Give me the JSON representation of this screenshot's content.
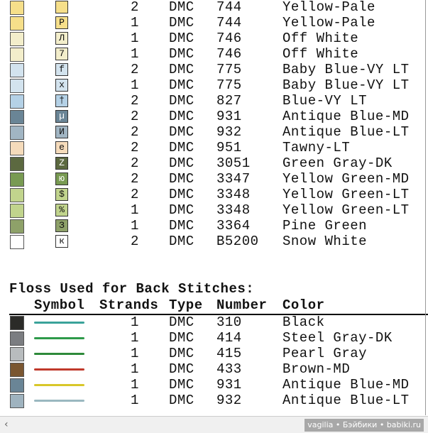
{
  "stitch_rows": [
    {
      "swatch": "#f6df8a",
      "strands": 2,
      "type": "DMC",
      "number": "744",
      "color": "Yellow-Pale"
    },
    {
      "swatch": "#f6df8a",
      "symbol": "P",
      "strands": 1,
      "type": "DMC",
      "number": "744",
      "color": "Yellow-Pale"
    },
    {
      "swatch": "#f3eecb",
      "symbol": "Л",
      "strands": 1,
      "type": "DMC",
      "number": "746",
      "color": "Off White"
    },
    {
      "swatch": "#f3eecb",
      "symbol": "7",
      "strands": 1,
      "type": "DMC",
      "number": "746",
      "color": "Off White"
    },
    {
      "swatch": "#d3e3ee",
      "symbol": "f",
      "strands": 2,
      "type": "DMC",
      "number": "775",
      "color": "Baby Blue-VY LT"
    },
    {
      "swatch": "#d3e3ee",
      "symbol": "x",
      "strands": 1,
      "type": "DMC",
      "number": "775",
      "color": "Baby Blue-VY LT"
    },
    {
      "swatch": "#b4d1e6",
      "symbol": "†",
      "strands": 2,
      "type": "DMC",
      "number": "827",
      "color": "Blue-VY LT"
    },
    {
      "swatch": "#6a8596",
      "symbol": "µ",
      "strands": 2,
      "type": "DMC",
      "number": "931",
      "color": "Antique Blue-MD"
    },
    {
      "swatch": "#a1b5c3",
      "symbol": "И",
      "strands": 2,
      "type": "DMC",
      "number": "932",
      "color": "Antique Blue-LT"
    },
    {
      "swatch": "#f5dbbb",
      "symbol": "e",
      "strands": 2,
      "type": "DMC",
      "number": "951",
      "color": "Tawny-LT"
    },
    {
      "swatch": "#5c6940",
      "symbol": "Z",
      "strands": 2,
      "type": "DMC",
      "number": "3051",
      "color": "Green Gray-DK"
    },
    {
      "swatch": "#789a52",
      "symbol": "ю",
      "strands": 2,
      "type": "DMC",
      "number": "3347",
      "color": "Yellow Green-MD"
    },
    {
      "swatch": "#c1d48d",
      "symbol": "$",
      "strands": 2,
      "type": "DMC",
      "number": "3348",
      "color": "Yellow Green-LT"
    },
    {
      "swatch": "#c1d48d",
      "symbol": "%",
      "strands": 1,
      "type": "DMC",
      "number": "3348",
      "color": "Yellow Green-LT"
    },
    {
      "swatch": "#8ea169",
      "symbol": "З",
      "strands": 1,
      "type": "DMC",
      "number": "3364",
      "color": "Pine Green"
    },
    {
      "swatch": "#ffffff",
      "symbol": "к",
      "strands": 2,
      "type": "DMC",
      "number": "B5200",
      "color": "Snow White"
    }
  ],
  "back_stitches": {
    "title": "Floss Used for Back Stitches:",
    "headers": [
      "Symbol",
      "Strands",
      "Type",
      "Number",
      "Color"
    ],
    "rows": [
      {
        "swatch": "#2b2b28",
        "line": "#3aa39a",
        "strands": 1,
        "type": "DMC",
        "number": "310",
        "color": "Black"
      },
      {
        "swatch": "#7b7d81",
        "line": "#2e9a4a",
        "strands": 1,
        "type": "DMC",
        "number": "414",
        "color": "Steel Gray-DK"
      },
      {
        "swatch": "#b8bcbe",
        "line": "#2e8a3a",
        "strands": 1,
        "type": "DMC",
        "number": "415",
        "color": "Pearl Gray"
      },
      {
        "swatch": "#7a5630",
        "line": "#c0392b",
        "strands": 1,
        "type": "DMC",
        "number": "433",
        "color": "Brown-MD"
      },
      {
        "swatch": "#6a8596",
        "line": "#d8c72a",
        "strands": 1,
        "type": "DMC",
        "number": "931",
        "color": "Antique Blue-MD"
      },
      {
        "swatch": "#9fb3bf",
        "line": "#9ab8c0",
        "strands": 1,
        "type": "DMC",
        "number": "932",
        "color": "Antique Blue-LT"
      }
    ]
  },
  "watermark": "vagilia • Бэйбики • babiki.ru"
}
